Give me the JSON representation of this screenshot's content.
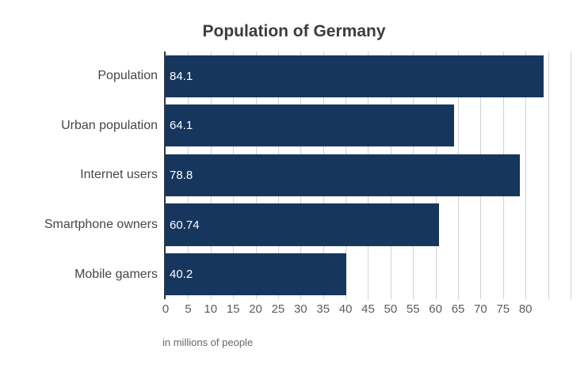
{
  "title": "Population of Germany",
  "chart_data": {
    "type": "bar",
    "orientation": "horizontal",
    "title": "Population of Germany",
    "categories": [
      "Population",
      "Urban population",
      "Internet users",
      "Smartphone owners",
      "Mobile gamers"
    ],
    "values": [
      84.1,
      64.1,
      78.8,
      60.74,
      40.2
    ],
    "value_labels": [
      "84.1",
      "64.1",
      "78.8",
      "60.74",
      "40.2"
    ],
    "xlabel": "in millions of people",
    "ylabel": "",
    "xlim": [
      0,
      93
    ],
    "xticks": [
      0,
      5,
      10,
      15,
      20,
      25,
      30,
      35,
      40,
      45,
      50,
      55,
      60,
      65,
      70,
      75,
      80
    ],
    "grid": "vertical",
    "grid_step": 5,
    "grid_max": 90,
    "legend": "none",
    "bar_color": "#17365d",
    "value_label_color": "#ffffff",
    "axis_line_color": "#33363b",
    "gridline_color": "#d2d2d2"
  }
}
